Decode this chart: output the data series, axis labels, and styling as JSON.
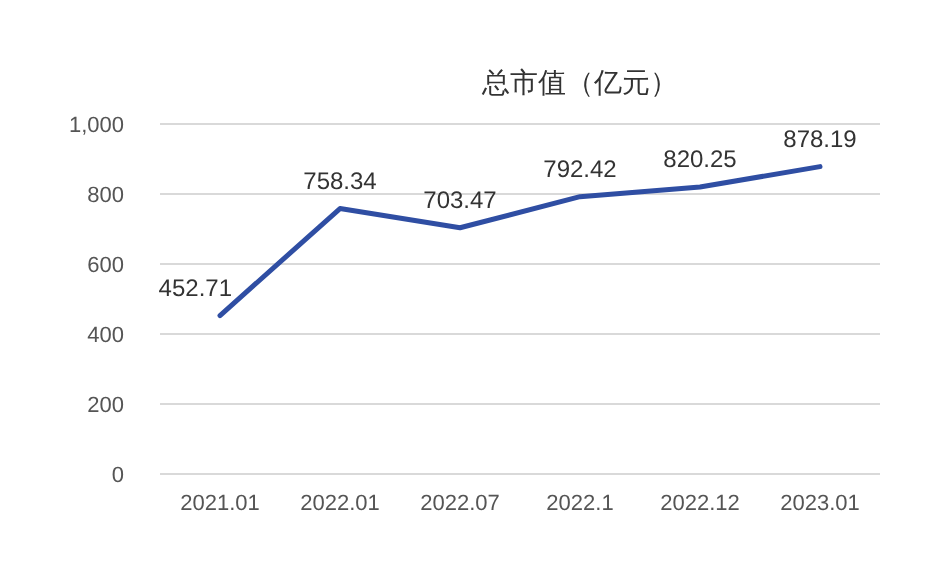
{
  "chart_data": {
    "type": "line",
    "title": "总市值（亿元）",
    "categories": [
      "2021.01",
      "2022.01",
      "2022.07",
      "2022.1",
      "2022.12",
      "2023.01"
    ],
    "values": [
      452.71,
      758.34,
      703.47,
      792.42,
      820.25,
      878.19
    ],
    "color": "#2f4ea3",
    "data_labels": true,
    "grid": "y",
    "marker": "none",
    "ylim": [
      0,
      1000
    ],
    "yticks": [
      0,
      200,
      400,
      600,
      800,
      {
        "value": 1000,
        "label": "1,000"
      }
    ]
  }
}
